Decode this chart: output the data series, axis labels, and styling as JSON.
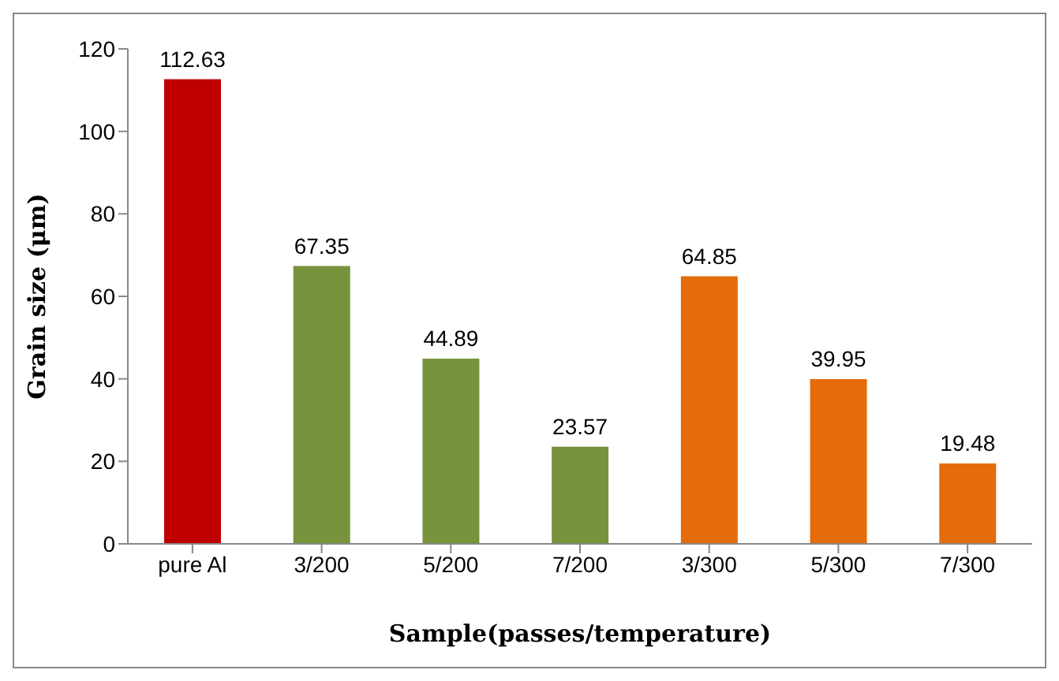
{
  "chart_data": {
    "type": "bar",
    "xlabel": "Sample(passes/temperature)",
    "ylabel": "Grain size (μm)",
    "categories": [
      "pure Al",
      "3/200",
      "5/200",
      "7/200",
      "3/300",
      "5/300",
      "7/300"
    ],
    "values": [
      112.63,
      67.35,
      44.89,
      23.57,
      64.85,
      39.95,
      19.48
    ],
    "colors": [
      "#c00000",
      "#77933c",
      "#77933c",
      "#77933c",
      "#e46c0a",
      "#e46c0a",
      "#e46c0a"
    ],
    "ylim": [
      0,
      120
    ],
    "yticks": [
      0,
      20,
      40,
      60,
      80,
      100,
      120
    ],
    "grid": false,
    "legend": false,
    "data_labels": true
  }
}
